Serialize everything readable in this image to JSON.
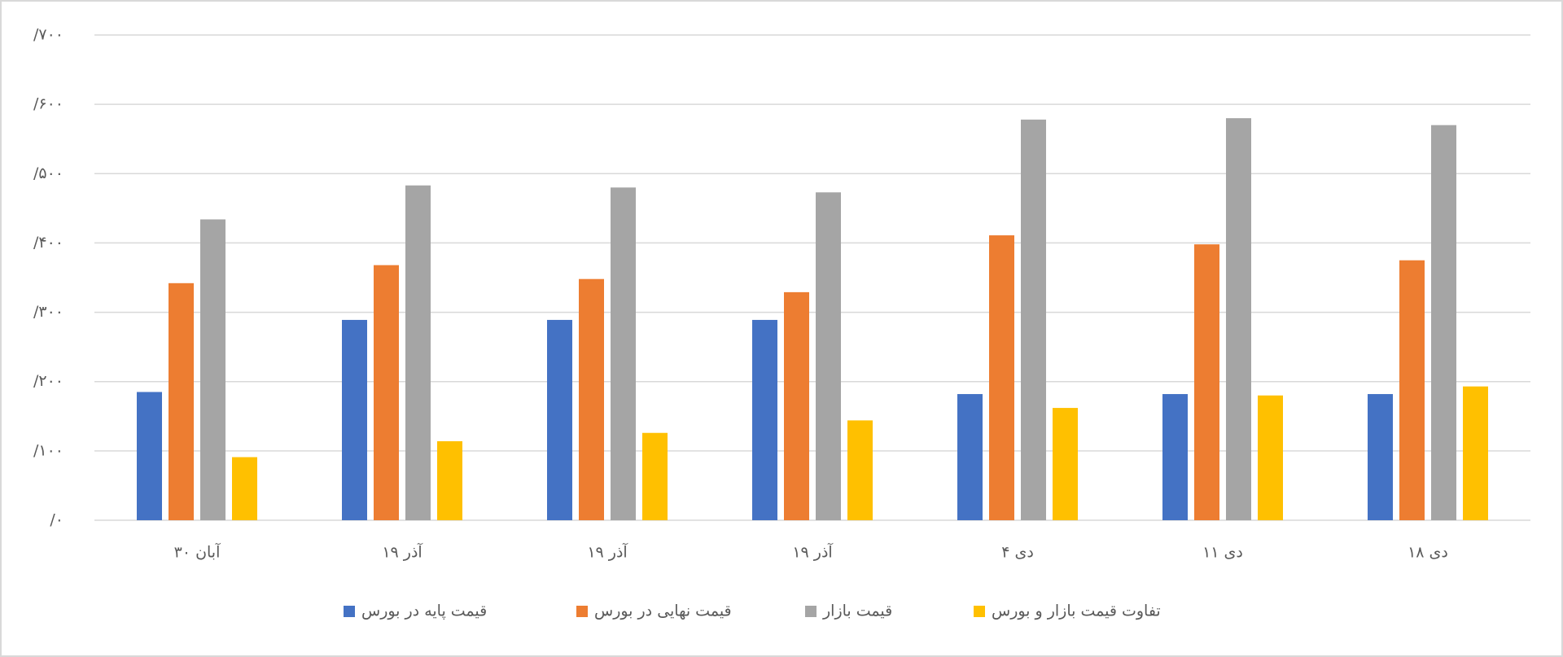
{
  "chart_data": {
    "type": "bar",
    "categories": [
      "۳۰ آبان",
      "۱۹ آذر",
      "۱۹ آذر",
      "۱۹ آذر",
      "۴ دی",
      "۱۱ دی",
      "۱۸ دی"
    ],
    "series": [
      {
        "name": "قیمت پایه در بورس",
        "color": "#4472c4",
        "values": [
          185,
          289,
          289,
          289,
          182,
          182,
          182
        ]
      },
      {
        "name": "قیمت نهایی در بورس",
        "color": "#ed7d31",
        "values": [
          342,
          368,
          348,
          329,
          411,
          398,
          375
        ]
      },
      {
        "name": "قیمت بازار",
        "color": "#a5a5a5",
        "values": [
          434,
          483,
          480,
          473,
          578,
          580,
          570
        ]
      },
      {
        "name": "تفاوت قیمت بازار و بورس",
        "color": "#ffc000",
        "values": [
          91,
          114,
          126,
          144,
          162,
          180,
          193
        ]
      }
    ],
    "ylim": [
      0,
      700
    ],
    "yticks": [
      {
        "value": 0,
        "label": "/۰"
      },
      {
        "value": 100,
        "label": "/۱۰۰"
      },
      {
        "value": 200,
        "label": "/۲۰۰"
      },
      {
        "value": 300,
        "label": "/۳۰۰"
      },
      {
        "value": 400,
        "label": "/۴۰۰"
      },
      {
        "value": 500,
        "label": "/۵۰۰"
      },
      {
        "value": 600,
        "label": "/۶۰۰"
      },
      {
        "value": 700,
        "label": "/۷۰۰"
      }
    ],
    "grid": true,
    "legend": "bottom"
  }
}
